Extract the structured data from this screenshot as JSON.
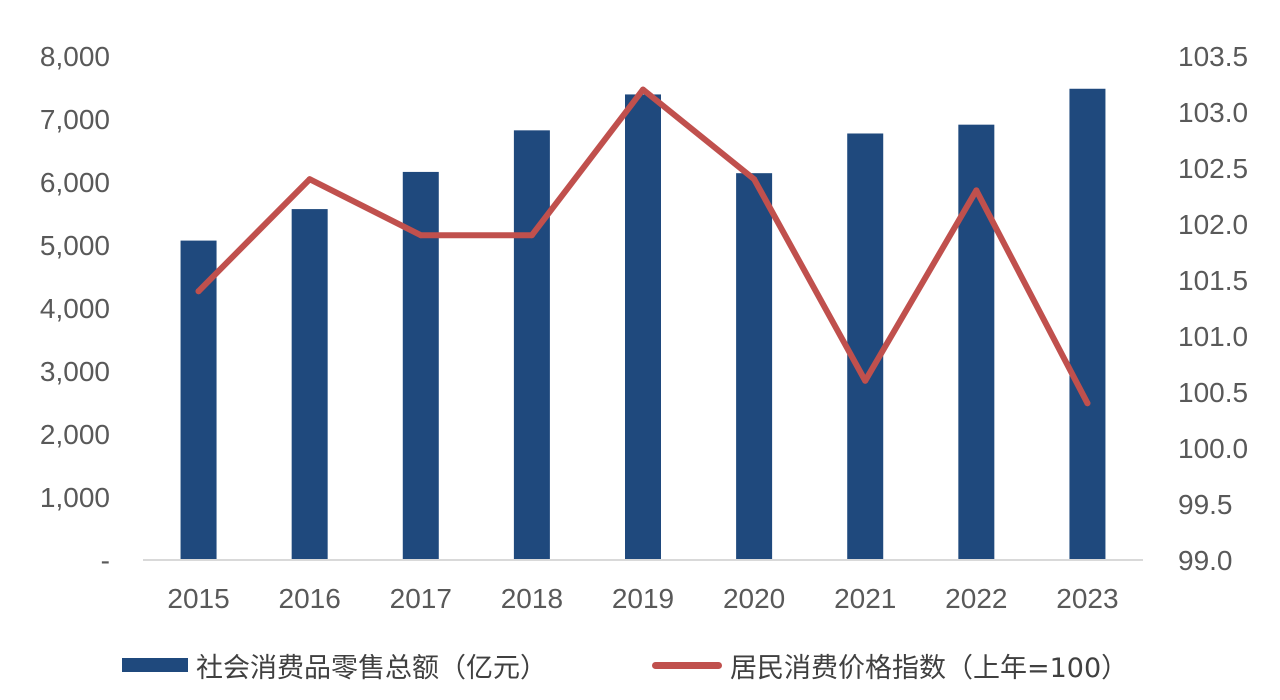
{
  "chart_data": {
    "type": "bar",
    "categories": [
      "2015",
      "2016",
      "2017",
      "2018",
      "2019",
      "2020",
      "2021",
      "2022",
      "2023"
    ],
    "series": [
      {
        "name": "社会消费品零售总额（亿元）",
        "type": "bar",
        "axis": "left",
        "color": "#1f497d",
        "values": [
          5070,
          5570,
          6160,
          6820,
          7390,
          6140,
          6770,
          6910,
          7480
        ]
      },
      {
        "name": "居民消费价格指数（上年=100）",
        "type": "line",
        "axis": "right",
        "color": "#c0504d",
        "values": [
          101.4,
          102.4,
          101.9,
          101.9,
          103.2,
          102.4,
          100.6,
          102.3,
          100.4
        ]
      }
    ],
    "y_left": {
      "range": [
        0,
        8000
      ],
      "ticks": [
        "-",
        "1,000",
        "2,000",
        "3,000",
        "4,000",
        "5,000",
        "6,000",
        "7,000",
        "8,000"
      ]
    },
    "y_right": {
      "range": [
        99.0,
        103.5
      ],
      "ticks": [
        "99.0",
        "99.5",
        "100.0",
        "100.5",
        "101.0",
        "101.5",
        "102.0",
        "102.5",
        "103.0",
        "103.5"
      ]
    },
    "grid": false,
    "legend_position": "bottom"
  },
  "legend": {
    "bar_label": "社会消费品零售总额（亿元）",
    "line_label": "居民消费价格指数（上年=100）"
  }
}
